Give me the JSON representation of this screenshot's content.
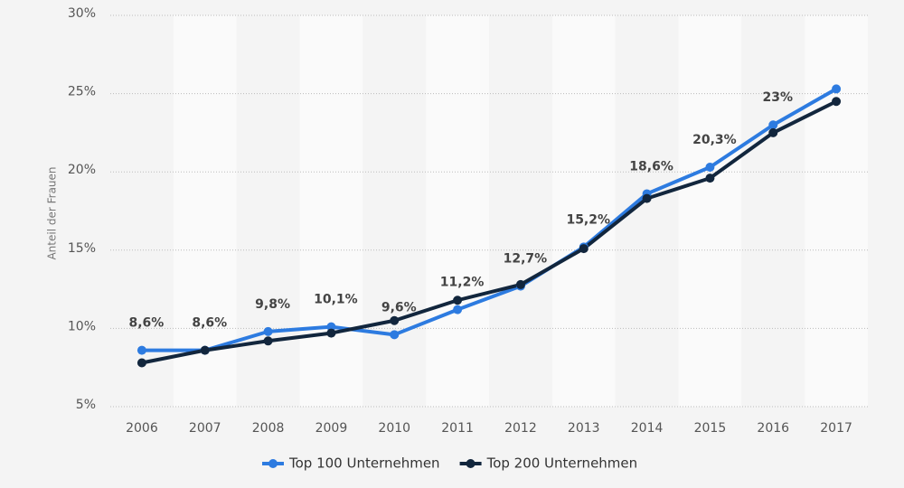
{
  "chart_data": {
    "type": "line",
    "y_label": "Anteil der Frauen",
    "categories": [
      "2006",
      "2007",
      "2008",
      "2009",
      "2010",
      "2011",
      "2012",
      "2013",
      "2014",
      "2015",
      "2016",
      "2017"
    ],
    "series": [
      {
        "name": "Top 100 Unternehmen",
        "color": "#2d7be0",
        "values": [
          8.6,
          8.6,
          9.8,
          10.1,
          9.6,
          11.2,
          12.7,
          15.2,
          18.6,
          20.3,
          23,
          25.3
        ],
        "value_labels": [
          "8,6%",
          "8,6%",
          "9,8%",
          "10,1%",
          "9,6%",
          "11,2%",
          "12,7%",
          "15,2%",
          "18,6%",
          "20,3%",
          "23%",
          null
        ]
      },
      {
        "name": "Top 200 Unternehmen",
        "color": "#12263d",
        "values": [
          7.8,
          8.6,
          9.2,
          9.7,
          10.5,
          11.8,
          12.8,
          15.1,
          18.3,
          19.6,
          22.5,
          24.5
        ]
      }
    ],
    "ylim": [
      5,
      30
    ],
    "yticks": [
      {
        "value": 5,
        "label": "5%"
      },
      {
        "value": 10,
        "label": "10%"
      },
      {
        "value": 15,
        "label": "15%"
      },
      {
        "value": 20,
        "label": "20%"
      },
      {
        "value": 25,
        "label": "25%"
      },
      {
        "value": 30,
        "label": "30%"
      }
    ],
    "grid": true,
    "legend": "bottom"
  }
}
